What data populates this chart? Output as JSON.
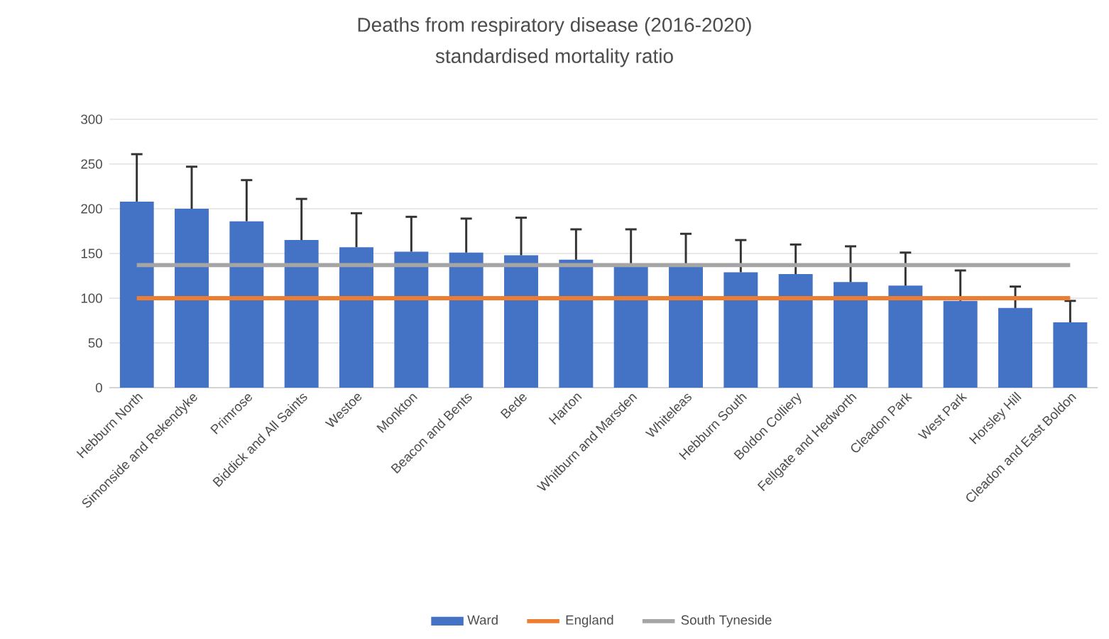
{
  "chart_data": {
    "type": "bar",
    "title": "Deaths from respiratory disease (2016-2020)",
    "subtitle": "standardised mortality ratio",
    "categories": [
      "Hebburn North",
      "Simonside and Rekendyke",
      "Primrose",
      "Biddick and All Saints",
      "Westoe",
      "Monkton",
      "Beacon and Bents",
      "Bede",
      "Harton",
      "Whitburn and Marsden",
      "Whiteleas",
      "Hebburn South",
      "Boldon Colliery",
      "Fellgate and Hedworth",
      "Cleadon Park",
      "West Park",
      "Horsley Hill",
      "Cleadon and East Boldon"
    ],
    "series": [
      {
        "name": "Ward",
        "color": "#4472c4",
        "values": [
          208,
          200,
          186,
          165,
          157,
          152,
          151,
          148,
          143,
          137,
          137,
          129,
          127,
          118,
          114,
          97,
          89,
          73
        ],
        "errors": [
          [
            208,
            261
          ],
          [
            200,
            247
          ],
          [
            186,
            232
          ],
          [
            165,
            211
          ],
          [
            157,
            195
          ],
          [
            152,
            191
          ],
          [
            151,
            189
          ],
          [
            148,
            190
          ],
          [
            143,
            177
          ],
          [
            137,
            177
          ],
          [
            137,
            172
          ],
          [
            129,
            165
          ],
          [
            127,
            160
          ],
          [
            118,
            158
          ],
          [
            114,
            151
          ],
          [
            97,
            131
          ],
          [
            89,
            113
          ],
          [
            73,
            97
          ]
        ]
      },
      {
        "name": "England",
        "type": "line",
        "color": "#ed7d31",
        "values": [
          100,
          100,
          100,
          100,
          100,
          100,
          100,
          100,
          100,
          100,
          100,
          100,
          100,
          100,
          100,
          100,
          100,
          100
        ]
      },
      {
        "name": "South Tyneside",
        "type": "line",
        "color": "#a5a5a5",
        "values": [
          137,
          137,
          137,
          137,
          137,
          137,
          137,
          137,
          137,
          137,
          137,
          137,
          137,
          137,
          137,
          137,
          137,
          137
        ]
      }
    ],
    "ylim": [
      0,
      300
    ],
    "yticks": [
      0,
      50,
      100,
      150,
      200,
      250,
      300
    ],
    "grid": "y",
    "legend": "bottom"
  }
}
